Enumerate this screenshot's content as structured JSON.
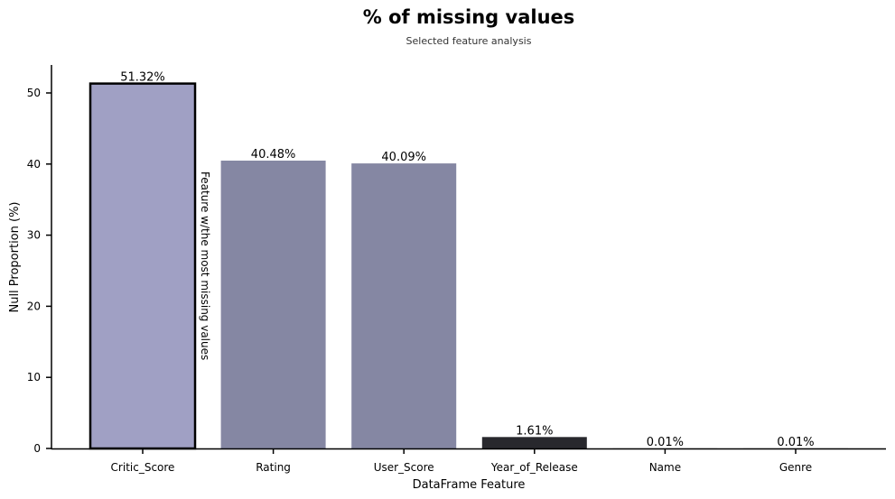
{
  "chart_data": {
    "type": "bar",
    "title": "% of missing values",
    "subtitle": "Selected feature analysis",
    "xlabel": "DataFrame Feature",
    "ylabel": "Null Proportion (%)",
    "categories": [
      "Critic_Score",
      "Rating",
      "User_Score",
      "Year_of_Release",
      "Name",
      "Genre"
    ],
    "values": [
      51.32,
      40.48,
      40.09,
      1.61,
      0.01,
      0.01
    ],
    "data_labels": [
      "51.32%",
      "40.48%",
      "40.09%",
      "1.61%",
      "0.01%",
      "0.01%"
    ],
    "colors": [
      "#a0a0c4",
      "#8587a3",
      "#8587a3",
      "#28282d",
      "#28282d",
      "#28282d"
    ],
    "highlight_index": 0,
    "highlight_border_color": "#000000",
    "annotation": "Feature w/the most missing values",
    "yticks": [
      0,
      10,
      20,
      30,
      40,
      50
    ],
    "ylim": [
      0,
      54
    ],
    "grid": false
  }
}
